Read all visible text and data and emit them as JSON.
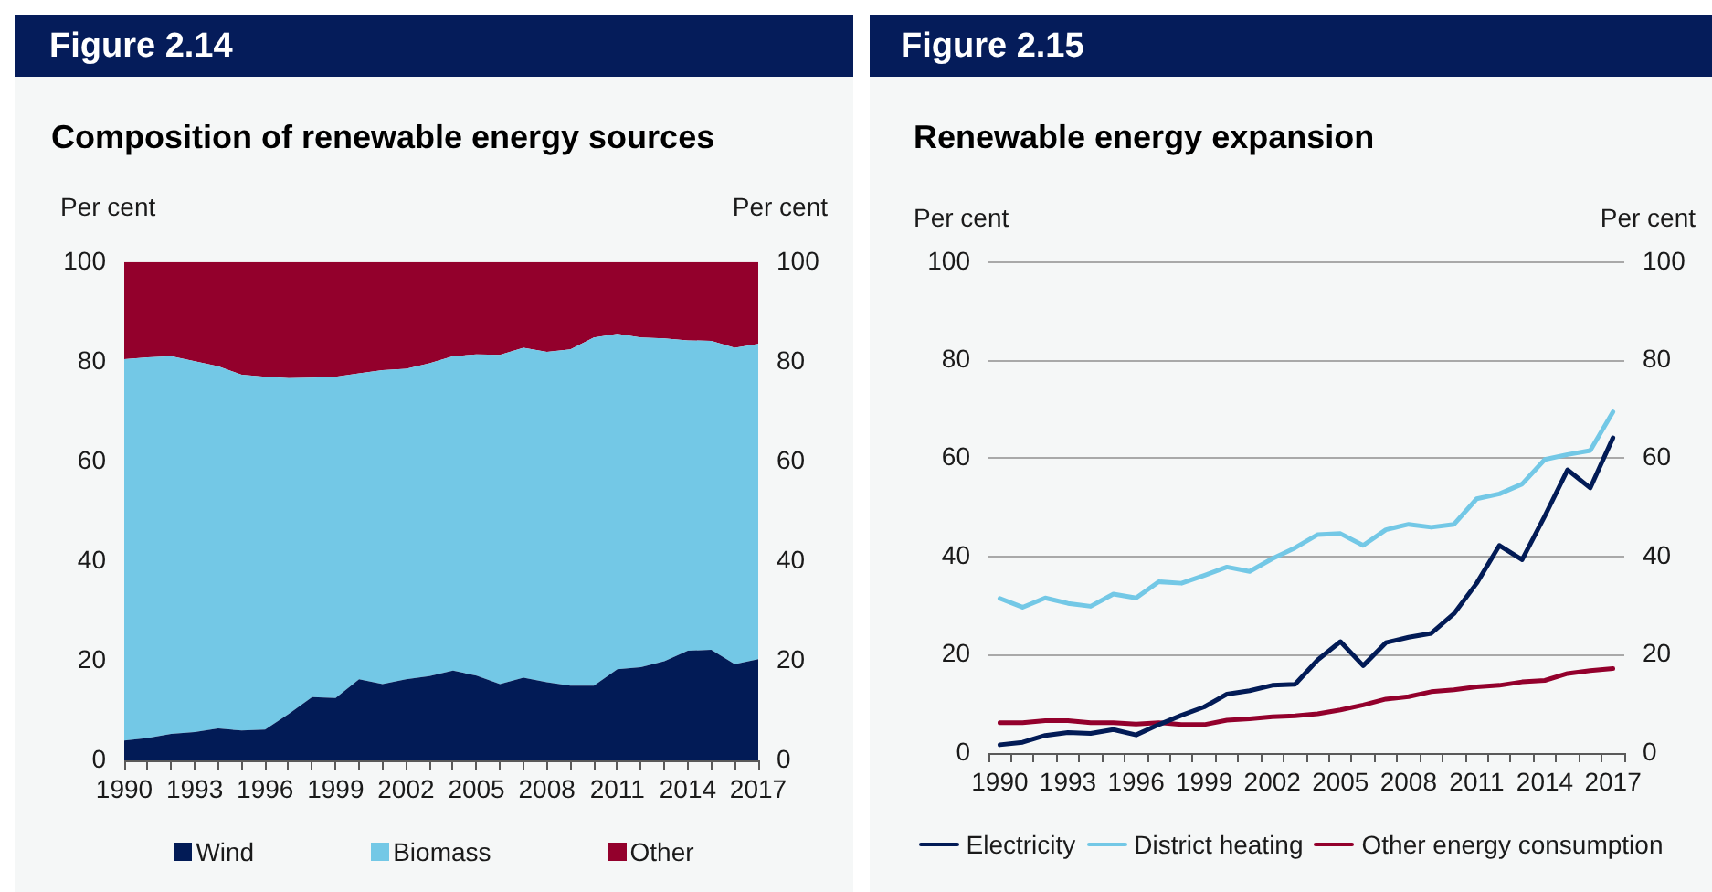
{
  "chart_data": [
    {
      "type": "area",
      "title": "Figure 2.14",
      "subtitle": "Composition of renewable energy sources",
      "ylabel": "Per cent",
      "y2label": "Per cent",
      "stacked": true,
      "legend": "bottom",
      "categories": [
        "1990",
        null,
        null,
        "1993",
        null,
        null,
        "1996",
        null,
        null,
        "1999",
        null,
        null,
        "2002",
        null,
        null,
        "2005",
        null,
        null,
        "2008",
        null,
        null,
        "2011",
        null,
        null,
        "2014",
        null,
        null,
        "2017"
      ],
      "series": [
        {
          "name": "Wind",
          "color": "#021b56",
          "values": [
            4.0,
            4.5,
            5.3,
            5.7,
            6.4,
            6.0,
            6.2,
            9.3,
            12.7,
            12.5,
            16.3,
            15.3,
            16.3,
            16.9,
            18.0,
            17.0,
            15.3,
            16.6,
            15.7,
            15.0,
            15.0,
            18.3,
            18.7,
            19.9,
            22.0,
            22.2,
            19.3,
            20.3
          ]
        },
        {
          "name": "Biomass",
          "color": "#73c8e6",
          "values": [
            76.5,
            76.4,
            75.8,
            74.4,
            72.7,
            71.4,
            70.8,
            67.4,
            64.1,
            64.5,
            61.4,
            63.0,
            62.3,
            62.8,
            63.1,
            64.5,
            66.1,
            66.2,
            66.3,
            67.5,
            69.9,
            67.3,
            66.2,
            64.8,
            62.3,
            62.0,
            63.5,
            63.3
          ]
        },
        {
          "name": "Other",
          "color": "#93002c",
          "values": [
            19.5,
            19.1,
            18.9,
            19.9,
            20.9,
            22.6,
            23.0,
            23.3,
            23.2,
            23.0,
            22.3,
            21.7,
            21.4,
            20.3,
            18.9,
            18.5,
            18.6,
            17.2,
            18.0,
            17.5,
            15.1,
            14.4,
            15.1,
            15.3,
            15.7,
            15.8,
            17.2,
            16.4
          ]
        }
      ],
      "ylim": [
        0,
        100
      ],
      "yticks": [
        0,
        20,
        40,
        60,
        80,
        100
      ],
      "y2lim": [
        0,
        100
      ],
      "y2ticks": [
        0,
        20,
        40,
        60,
        80,
        100
      ]
    },
    {
      "type": "line",
      "title": "Figure 2.15",
      "subtitle": "Renewable energy expansion",
      "ylabel": "Per cent",
      "y2label": "Per cent",
      "legend": "bottom",
      "grid": "y",
      "marker": "none",
      "line_style": "solid",
      "categories": [
        "1990",
        null,
        null,
        "1993",
        null,
        null,
        "1996",
        null,
        null,
        "1999",
        null,
        null,
        "2002",
        null,
        null,
        "2005",
        null,
        null,
        "2008",
        null,
        null,
        "2011",
        null,
        null,
        "2014",
        null,
        null,
        "2017"
      ],
      "series": [
        {
          "name": "Electricity",
          "color": "#021b56",
          "values": [
            1.7,
            2.2,
            3.6,
            4.2,
            4.0,
            4.8,
            3.7,
            5.8,
            7.7,
            9.4,
            12.0,
            12.7,
            13.8,
            14.0,
            19.0,
            22.7,
            17.8,
            22.5,
            23.6,
            24.4,
            28.4,
            34.6,
            42.3,
            39.4,
            48.3,
            57.7,
            54.0,
            64.2
          ]
        },
        {
          "name": "District heating",
          "color": "#73c8e6",
          "values": [
            31.5,
            29.7,
            31.6,
            30.5,
            29.9,
            32.4,
            31.6,
            34.9,
            34.6,
            36.2,
            37.9,
            37.0,
            39.6,
            41.8,
            44.5,
            44.7,
            42.3,
            45.5,
            46.6,
            46.0,
            46.6,
            51.8,
            52.8,
            54.8,
            59.8,
            60.8,
            61.6,
            69.5
          ]
        },
        {
          "name": "Other energy consumption",
          "color": "#93002c",
          "values": [
            6.2,
            6.2,
            6.6,
            6.6,
            6.2,
            6.2,
            5.9,
            6.2,
            5.8,
            5.8,
            6.7,
            7.0,
            7.4,
            7.6,
            8.0,
            8.8,
            9.8,
            11.0,
            11.5,
            12.5,
            12.9,
            13.5,
            13.8,
            14.5,
            14.8,
            16.2,
            16.8,
            17.2
          ]
        }
      ],
      "ylim": [
        0,
        100
      ],
      "yticks": [
        0,
        20,
        40,
        60,
        80,
        100
      ],
      "y2lim": [
        0,
        100
      ],
      "y2ticks": [
        0,
        20,
        40,
        60,
        80,
        100
      ]
    }
  ]
}
